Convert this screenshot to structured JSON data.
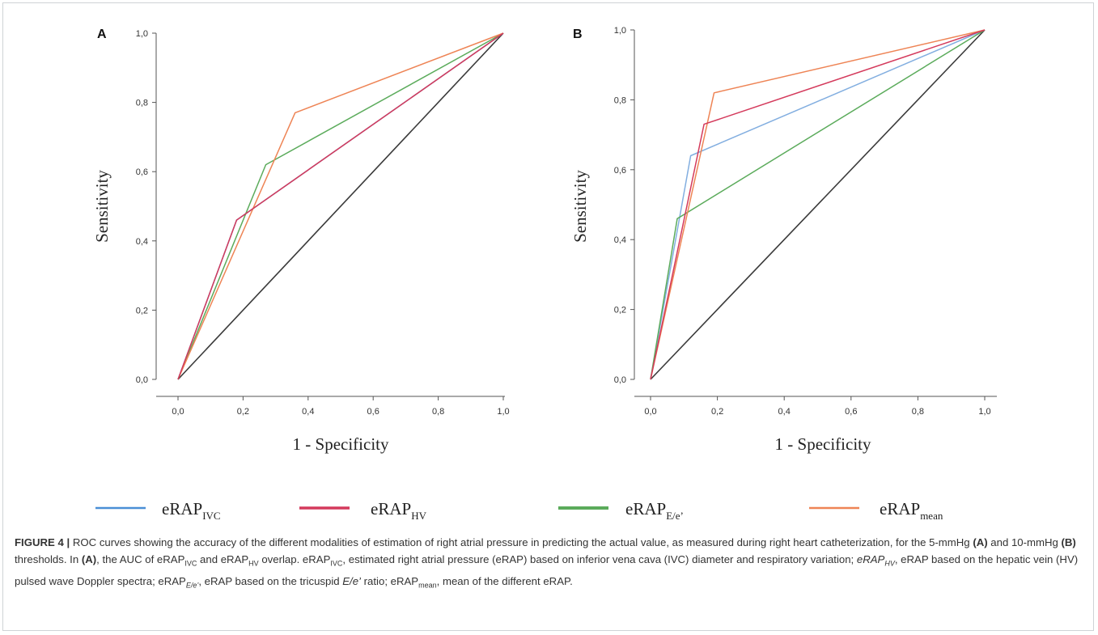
{
  "chart_data": [
    {
      "type": "line",
      "panel": "A",
      "title": "",
      "xlabel": "1 - Specificity",
      "ylabel": "Sensitivity",
      "xlim": [
        0,
        1
      ],
      "ylim": [
        0,
        1
      ],
      "xticks": [
        "0,0",
        "0,2",
        "0,4",
        "0,6",
        "0,8",
        "1,0"
      ],
      "yticks": [
        "0,0",
        "0,2",
        "0,4",
        "0,6",
        "0,8",
        "1,0"
      ],
      "grid": false,
      "series": [
        {
          "key": "ivc",
          "color": "#4a8fd6",
          "x": [
            0,
            0.18,
            1
          ],
          "y": [
            0,
            0.46,
            1
          ]
        },
        {
          "key": "hv",
          "color": "#d43a5c",
          "x": [
            0,
            0.18,
            1
          ],
          "y": [
            0,
            0.46,
            1
          ]
        },
        {
          "key": "ee",
          "color": "#5bab5b",
          "x": [
            0,
            0.27,
            1
          ],
          "y": [
            0,
            0.62,
            1
          ]
        },
        {
          "key": "mean",
          "color": "#ee8455",
          "x": [
            0,
            0.36,
            1
          ],
          "y": [
            0,
            0.77,
            1
          ]
        },
        {
          "key": "ref",
          "color": "#3a3a3a",
          "x": [
            0,
            1
          ],
          "y": [
            0,
            1
          ]
        }
      ]
    },
    {
      "type": "line",
      "panel": "B",
      "title": "",
      "xlabel": "1 - Specificity",
      "ylabel": "Sensitivity",
      "xlim": [
        0,
        1
      ],
      "ylim": [
        0,
        1
      ],
      "xticks": [
        "0,0",
        "0,2",
        "0,4",
        "0,6",
        "0,8",
        "1,0"
      ],
      "yticks": [
        "0,0",
        "0,2",
        "0,4",
        "0,6",
        "0,8",
        "1,0"
      ],
      "grid": false,
      "series": [
        {
          "key": "ivc",
          "color": "#82aee0",
          "x": [
            0,
            0.12,
            1
          ],
          "y": [
            0,
            0.64,
            1
          ]
        },
        {
          "key": "hv",
          "color": "#d43a5c",
          "x": [
            0,
            0.16,
            1
          ],
          "y": [
            0,
            0.73,
            1
          ]
        },
        {
          "key": "ee",
          "color": "#5bab5b",
          "x": [
            0,
            0.08,
            1
          ],
          "y": [
            0,
            0.46,
            1
          ]
        },
        {
          "key": "mean",
          "color": "#ee8455",
          "x": [
            0,
            0.19,
            1
          ],
          "y": [
            0,
            0.82,
            1
          ]
        },
        {
          "key": "ref",
          "color": "#3a3a3a",
          "x": [
            0,
            1
          ],
          "y": [
            0,
            1
          ]
        }
      ]
    }
  ],
  "legend": [
    {
      "key": "ivc",
      "base": "eRAP",
      "sub": "IVC",
      "color": "#4a8fd6"
    },
    {
      "key": "hv",
      "base": "eRAP",
      "sub": "HV",
      "color": "#d43a5c"
    },
    {
      "key": "ee",
      "base": "eRAP",
      "sub": "E/e’",
      "color": "#5bab5b"
    },
    {
      "key": "mean",
      "base": "eRAP",
      "sub": "mean",
      "color": "#ee8455"
    }
  ],
  "caption": {
    "label": "FIGURE 4 |",
    "t1": " ROC curves showing the accuracy of the different modalities of estimation of right atrial pressure in predicting the actual value, as measured during right heart catheterization, for the 5-mmHg ",
    "refA": "(A)",
    "t2": " and 10-mmHg ",
    "refB": "(B)",
    "t3": " thresholds. In ",
    "refA2": "(A)",
    "t4": ", the AUC of eRAP",
    "s1": "IVC",
    "t5": " and eRAP",
    "s2": "HV",
    "t6": " overlap. eRAP",
    "s3": "IVC",
    "t7": ", estimated right atrial pressure (eRAP) based on inferior vena cava (IVC) diameter and respiratory variation; ",
    "i1": "eRAP",
    "is1": "HV",
    "t8": ", eRAP based on the hepatic vein (HV) pulsed wave Doppler spectra; eRAP",
    "is2": "E/e’",
    "t9": ", eRAP based on the tricuspid ",
    "i2": "E/e’",
    "t10": " ratio; eRAP",
    "s4": "mean",
    "t11": ", mean of the different eRAP."
  }
}
